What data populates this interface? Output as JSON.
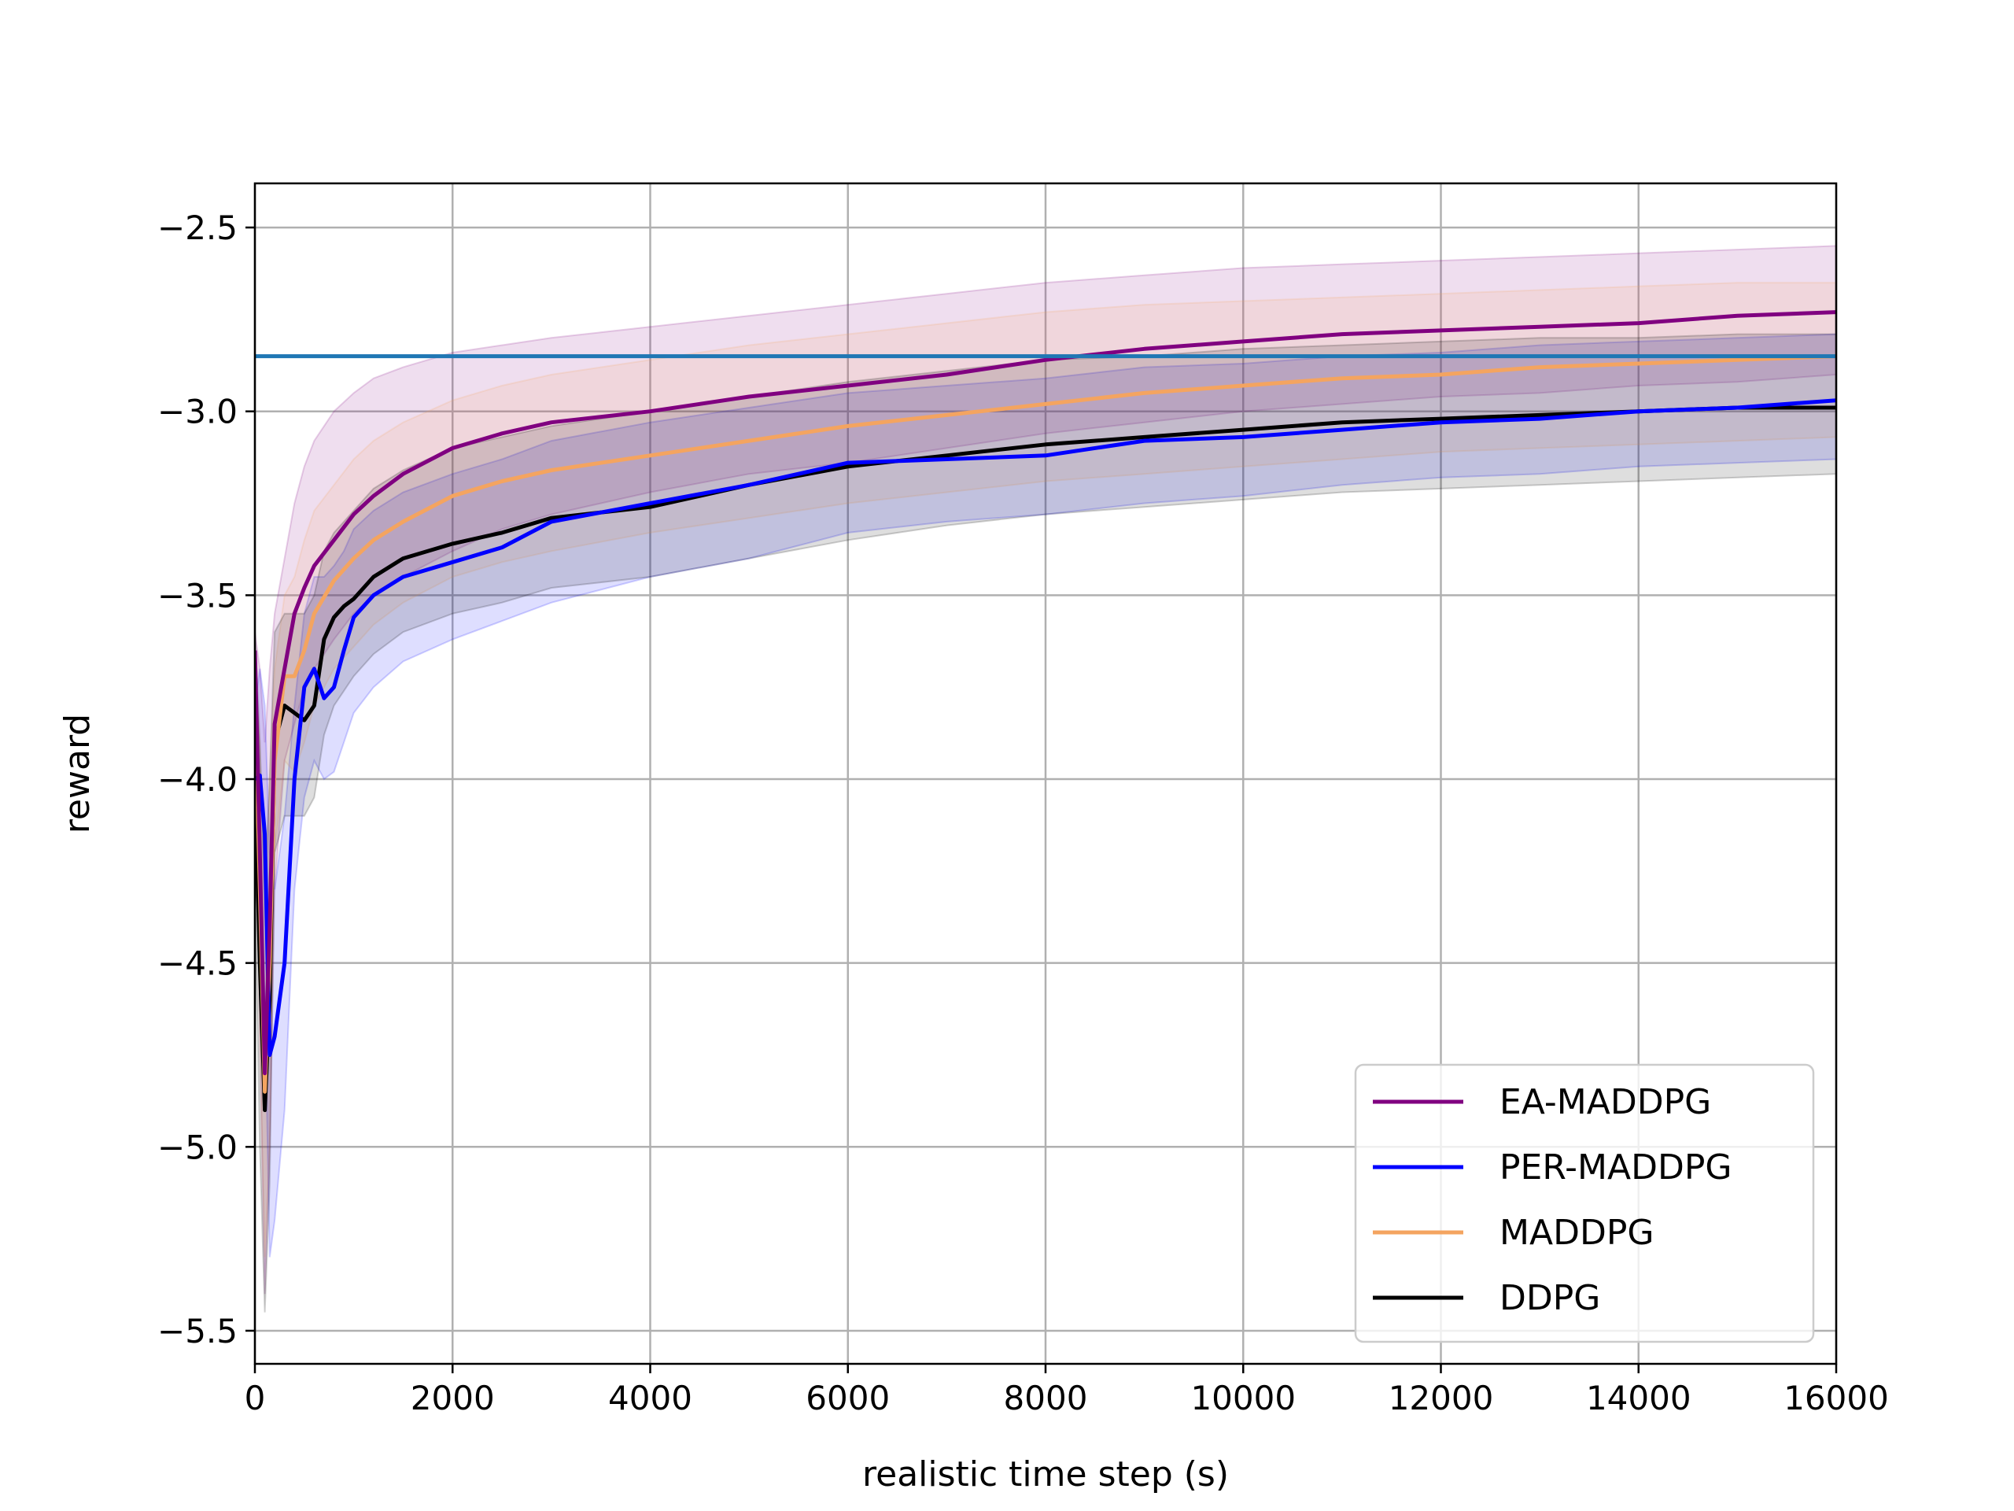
{
  "chart_data": {
    "type": "line",
    "title": "",
    "xlabel": "realistic time step (s)",
    "ylabel": "reward",
    "xlim": [
      0,
      16000
    ],
    "ylim": [
      -5.59,
      -2.38
    ],
    "x_ticks": [
      0,
      2000,
      4000,
      6000,
      8000,
      10000,
      12000,
      14000,
      16000
    ],
    "y_ticks": [
      -2.5,
      -3.0,
      -3.5,
      -4.0,
      -4.5,
      -5.0,
      -5.5
    ],
    "x_tick_labels": [
      "0",
      "2000",
      "4000",
      "6000",
      "8000",
      "10000",
      "12000",
      "14000",
      "16000"
    ],
    "y_tick_labels": [
      "−2.5",
      "−3.0",
      "−3.5",
      "−4.0",
      "−4.5",
      "−5.0",
      "−5.5"
    ],
    "grid": true,
    "legend_position": "lower-right",
    "reference_line": {
      "y": -2.85,
      "color": "#1f77b4"
    },
    "series": [
      {
        "name": "EA-MADDPG",
        "color": "#800080",
        "x": [
          0,
          50,
          100,
          150,
          200,
          300,
          400,
          500,
          600,
          800,
          1000,
          1200,
          1500,
          2000,
          2500,
          3000,
          4000,
          5000,
          6000,
          7000,
          8000,
          9000,
          10000,
          11000,
          12000,
          13000,
          14000,
          15000,
          16000
        ],
        "y": [
          -3.65,
          -4.2,
          -4.8,
          -4.4,
          -3.85,
          -3.7,
          -3.55,
          -3.48,
          -3.42,
          -3.35,
          -3.28,
          -3.23,
          -3.17,
          -3.1,
          -3.06,
          -3.03,
          -3.0,
          -2.96,
          -2.93,
          -2.9,
          -2.86,
          -2.83,
          -2.81,
          -2.79,
          -2.78,
          -2.77,
          -2.76,
          -2.74,
          -2.73
        ],
        "upper": [
          -3.6,
          -3.7,
          -3.9,
          -3.7,
          -3.55,
          -3.4,
          -3.25,
          -3.15,
          -3.08,
          -3.0,
          -2.95,
          -2.91,
          -2.88,
          -2.84,
          -2.82,
          -2.8,
          -2.77,
          -2.74,
          -2.71,
          -2.68,
          -2.65,
          -2.63,
          -2.61,
          -2.6,
          -2.59,
          -2.58,
          -2.57,
          -2.56,
          -2.55
        ],
        "lower": [
          -3.75,
          -4.7,
          -5.4,
          -5.0,
          -4.3,
          -3.95,
          -3.85,
          -3.75,
          -3.7,
          -3.62,
          -3.55,
          -3.5,
          -3.45,
          -3.38,
          -3.32,
          -3.28,
          -3.22,
          -3.17,
          -3.14,
          -3.1,
          -3.06,
          -3.03,
          -3.0,
          -2.98,
          -2.96,
          -2.95,
          -2.93,
          -2.92,
          -2.9
        ]
      },
      {
        "name": "PER-MADDPG",
        "color": "#0000ff",
        "x": [
          0,
          50,
          100,
          150,
          200,
          300,
          400,
          500,
          600,
          700,
          800,
          900,
          1000,
          1200,
          1500,
          2000,
          2500,
          3000,
          4000,
          5000,
          6000,
          7000,
          8000,
          9000,
          10000,
          11000,
          12000,
          13000,
          14000,
          15000,
          16000
        ],
        "y": [
          -4.0,
          -3.99,
          -4.15,
          -4.75,
          -4.7,
          -4.5,
          -4.0,
          -3.75,
          -3.7,
          -3.78,
          -3.75,
          -3.65,
          -3.56,
          -3.5,
          -3.45,
          -3.41,
          -3.37,
          -3.3,
          -3.25,
          -3.2,
          -3.14,
          -3.13,
          -3.12,
          -3.08,
          -3.07,
          -3.05,
          -3.03,
          -3.02,
          -3.0,
          -2.99,
          -2.97
        ],
        "upper": [
          -3.8,
          -3.7,
          -3.8,
          -4.2,
          -4.3,
          -4.1,
          -3.8,
          -3.55,
          -3.45,
          -3.45,
          -3.42,
          -3.38,
          -3.32,
          -3.27,
          -3.22,
          -3.17,
          -3.13,
          -3.08,
          -3.03,
          -2.99,
          -2.95,
          -2.93,
          -2.91,
          -2.88,
          -2.87,
          -2.85,
          -2.84,
          -2.82,
          -2.81,
          -2.8,
          -2.79
        ],
        "lower": [
          -4.2,
          -4.3,
          -4.6,
          -5.3,
          -5.2,
          -4.9,
          -4.3,
          -4.05,
          -3.95,
          -4.0,
          -3.98,
          -3.9,
          -3.82,
          -3.75,
          -3.68,
          -3.62,
          -3.57,
          -3.52,
          -3.45,
          -3.4,
          -3.33,
          -3.3,
          -3.28,
          -3.25,
          -3.23,
          -3.2,
          -3.18,
          -3.17,
          -3.15,
          -3.14,
          -3.13
        ]
      },
      {
        "name": "MADDPG",
        "color": "#f4a460",
        "x": [
          0,
          50,
          100,
          150,
          200,
          300,
          400,
          500,
          600,
          800,
          1000,
          1200,
          1500,
          2000,
          2500,
          3000,
          4000,
          5000,
          6000,
          7000,
          8000,
          9000,
          10000,
          11000,
          12000,
          13000,
          14000,
          15000,
          16000
        ],
        "y": [
          -3.8,
          -4.3,
          -4.85,
          -4.5,
          -3.95,
          -3.72,
          -3.72,
          -3.65,
          -3.55,
          -3.46,
          -3.4,
          -3.35,
          -3.3,
          -3.23,
          -3.19,
          -3.16,
          -3.12,
          -3.08,
          -3.04,
          -3.01,
          -2.98,
          -2.95,
          -2.93,
          -2.91,
          -2.9,
          -2.88,
          -2.87,
          -2.86,
          -2.85
        ],
        "upper": [
          -3.7,
          -3.9,
          -4.4,
          -4.0,
          -3.7,
          -3.5,
          -3.45,
          -3.35,
          -3.27,
          -3.2,
          -3.13,
          -3.08,
          -3.03,
          -2.97,
          -2.93,
          -2.9,
          -2.86,
          -2.82,
          -2.79,
          -2.76,
          -2.73,
          -2.71,
          -2.7,
          -2.69,
          -2.68,
          -2.67,
          -2.66,
          -2.65,
          -2.65
        ],
        "lower": [
          -3.9,
          -4.7,
          -5.3,
          -5.0,
          -4.2,
          -3.95,
          -3.98,
          -3.9,
          -3.8,
          -3.7,
          -3.64,
          -3.58,
          -3.52,
          -3.45,
          -3.41,
          -3.38,
          -3.33,
          -3.29,
          -3.25,
          -3.22,
          -3.19,
          -3.17,
          -3.15,
          -3.13,
          -3.11,
          -3.1,
          -3.09,
          -3.08,
          -3.07
        ]
      },
      {
        "name": "DDPG",
        "color": "#000000",
        "x": [
          0,
          50,
          100,
          150,
          200,
          300,
          400,
          500,
          600,
          700,
          800,
          900,
          1000,
          1200,
          1500,
          2000,
          2500,
          3000,
          4000,
          5000,
          6000,
          7000,
          8000,
          9000,
          10000,
          11000,
          12000,
          13000,
          14000,
          15000,
          16000
        ],
        "y": [
          -4.0,
          -4.5,
          -4.9,
          -4.6,
          -3.9,
          -3.8,
          -3.82,
          -3.84,
          -3.8,
          -3.62,
          -3.56,
          -3.53,
          -3.51,
          -3.45,
          -3.4,
          -3.36,
          -3.33,
          -3.29,
          -3.26,
          -3.2,
          -3.15,
          -3.12,
          -3.09,
          -3.07,
          -3.05,
          -3.03,
          -3.02,
          -3.01,
          -3.0,
          -2.99,
          -2.99
        ],
        "upper": [
          -3.6,
          -3.9,
          -4.3,
          -4.0,
          -3.6,
          -3.55,
          -3.55,
          -3.55,
          -3.5,
          -3.38,
          -3.33,
          -3.3,
          -3.27,
          -3.21,
          -3.16,
          -3.1,
          -3.07,
          -3.04,
          -3.0,
          -2.96,
          -2.92,
          -2.89,
          -2.86,
          -2.85,
          -2.83,
          -2.82,
          -2.81,
          -2.8,
          -2.8,
          -2.79,
          -2.79
        ],
        "lower": [
          -4.3,
          -5.0,
          -5.45,
          -5.1,
          -4.2,
          -4.1,
          -4.1,
          -4.1,
          -4.05,
          -3.88,
          -3.8,
          -3.76,
          -3.72,
          -3.66,
          -3.6,
          -3.55,
          -3.52,
          -3.48,
          -3.45,
          -3.4,
          -3.35,
          -3.31,
          -3.28,
          -3.26,
          -3.24,
          -3.22,
          -3.21,
          -3.2,
          -3.19,
          -3.18,
          -3.17
        ]
      }
    ]
  }
}
